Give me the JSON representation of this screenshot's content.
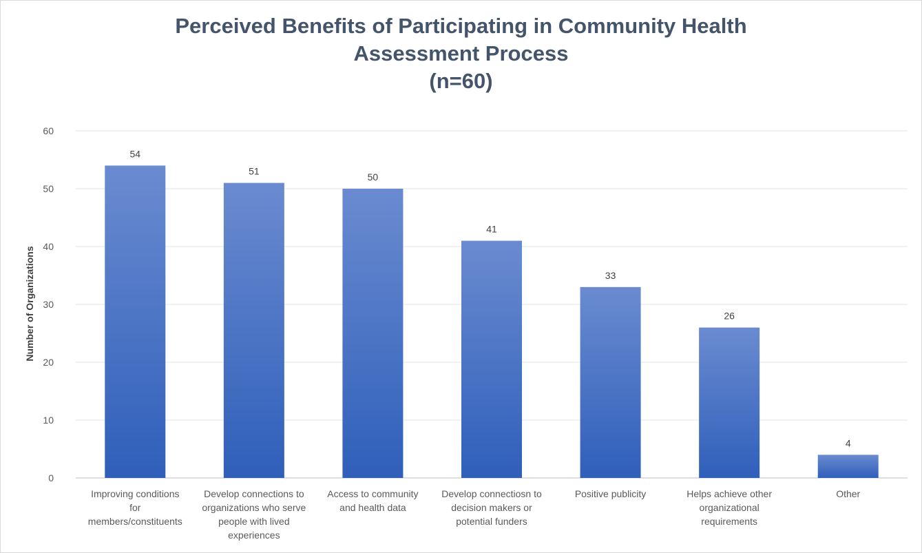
{
  "chart_data": {
    "type": "bar",
    "title_lines": [
      "Perceived Benefits of Participating in Community Health",
      "Assessment Process",
      "(n=60)"
    ],
    "xlabel": "",
    "ylabel": "Number of Organizations",
    "ylim": [
      0,
      60
    ],
    "yticks": [
      0,
      10,
      20,
      30,
      40,
      50,
      60
    ],
    "grid": true,
    "legend": "none",
    "bar_color_top": "#6a8bd0",
    "bar_color_bottom": "#2f5fba",
    "categories": [
      [
        "Improving conditions",
        "for",
        "members/constituents"
      ],
      [
        "Develop connections to",
        "organizations who serve",
        "people with lived",
        "experiences"
      ],
      [
        "Access to community",
        "and health data"
      ],
      [
        "Develop connectiosn to",
        "decision makers or",
        "potential funders"
      ],
      [
        "Positive publicity"
      ],
      [
        "Helps achieve other",
        "organizational",
        "requirements"
      ],
      [
        "Other"
      ]
    ],
    "values": [
      54,
      51,
      50,
      41,
      33,
      26,
      4
    ]
  }
}
